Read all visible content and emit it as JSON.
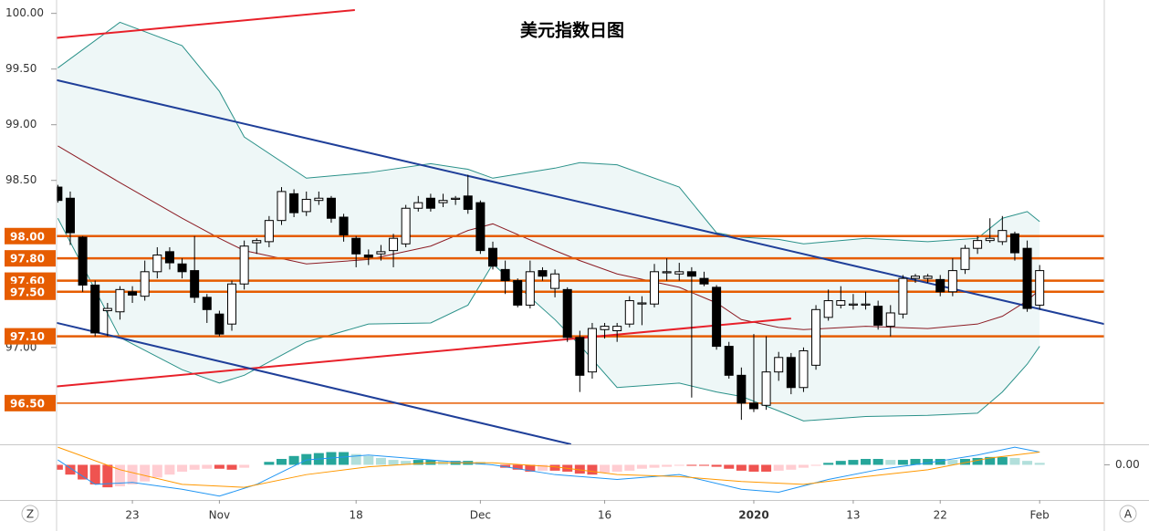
{
  "chart_data": [
    {
      "type": "candlestick",
      "title": "美元指数日图",
      "categories": [
        null,
        null,
        null,
        null,
        null,
        null,
        "23",
        null,
        null,
        null,
        null,
        null,
        null,
        "Nov",
        null,
        null,
        null,
        null,
        null,
        null,
        null,
        null,
        null,
        null,
        "18",
        null,
        null,
        null,
        null,
        null,
        null,
        null,
        null,
        null,
        "Dec",
        null,
        null,
        null,
        null,
        null,
        null,
        null,
        null,
        null,
        "16",
        null,
        null,
        null,
        null,
        null,
        null,
        null,
        null,
        null,
        null,
        null,
        "2020",
        null,
        null,
        null,
        null,
        null,
        null,
        null,
        "13",
        null,
        null,
        null,
        null,
        null,
        null,
        "22",
        null,
        null,
        null,
        null,
        null,
        null,
        null,
        "Feb"
      ],
      "open": [
        98.44,
        98.34,
        97.99,
        97.56,
        97.33,
        97.32,
        97.5,
        97.46,
        97.68,
        97.86,
        97.75,
        97.69,
        97.45,
        97.3,
        97.21,
        97.57,
        97.94,
        97.95,
        98.14,
        98.38,
        98.22,
        98.32,
        98.34,
        98.17,
        97.98,
        97.83,
        97.84,
        97.87,
        97.93,
        98.25,
        98.34,
        98.3,
        98.33,
        98.36,
        98.3,
        97.89,
        97.7,
        97.6,
        97.38,
        97.69,
        97.53,
        97.52,
        97.09,
        96.78,
        97.16,
        97.15,
        97.21,
        97.39,
        97.39,
        97.67,
        97.66,
        97.68,
        97.62,
        97.54,
        97.01,
        96.75,
        96.5,
        96.48,
        96.78,
        96.91,
        96.64,
        96.84,
        97.27,
        97.38,
        97.38,
        97.38,
        97.37,
        97.19,
        97.3,
        97.62,
        97.62,
        97.61,
        97.5,
        97.7,
        97.89,
        97.96,
        97.95,
        98.02,
        97.89,
        97.38
      ],
      "high": [
        98.46,
        98.4,
        98.0,
        97.6,
        97.4,
        97.55,
        97.55,
        97.78,
        97.9,
        97.9,
        97.8,
        98.0,
        97.48,
        97.33,
        97.6,
        97.96,
        97.98,
        98.18,
        98.44,
        98.42,
        98.4,
        98.4,
        98.36,
        98.2,
        98.0,
        97.88,
        97.92,
        98.02,
        98.28,
        98.36,
        98.38,
        98.38,
        98.36,
        98.55,
        98.32,
        97.95,
        97.78,
        97.62,
        97.78,
        97.72,
        97.7,
        97.54,
        97.15,
        97.22,
        97.22,
        97.22,
        97.46,
        97.46,
        97.75,
        97.8,
        97.76,
        97.72,
        97.68,
        97.56,
        97.05,
        96.82,
        97.12,
        97.1,
        96.96,
        96.95,
        97.0,
        97.38,
        97.52,
        97.55,
        97.48,
        97.5,
        97.42,
        97.38,
        97.65,
        97.66,
        97.66,
        97.65,
        97.8,
        97.92,
        98.0,
        98.16,
        98.18,
        98.04,
        97.96,
        97.74
      ],
      "low": [
        98.3,
        97.92,
        97.5,
        97.1,
        97.1,
        97.25,
        97.4,
        97.42,
        97.62,
        97.7,
        97.62,
        97.4,
        97.22,
        97.1,
        97.15,
        97.52,
        97.84,
        97.9,
        98.1,
        98.17,
        98.18,
        98.28,
        98.12,
        97.95,
        97.72,
        97.74,
        97.78,
        97.72,
        97.9,
        98.22,
        98.22,
        98.26,
        98.28,
        98.2,
        97.84,
        97.7,
        97.48,
        97.36,
        97.35,
        97.6,
        97.45,
        97.05,
        96.6,
        96.72,
        97.08,
        97.05,
        97.18,
        97.2,
        97.36,
        97.6,
        97.6,
        96.55,
        97.55,
        96.98,
        96.72,
        96.35,
        96.42,
        96.44,
        96.7,
        96.58,
        96.6,
        96.8,
        97.24,
        97.35,
        97.34,
        97.34,
        97.16,
        97.1,
        97.26,
        97.58,
        97.58,
        97.46,
        97.46,
        97.66,
        97.84,
        97.94,
        97.92,
        97.78,
        97.32,
        97.34
      ],
      "close": [
        98.32,
        98.03,
        97.56,
        97.13,
        97.35,
        97.52,
        97.47,
        97.68,
        97.83,
        97.76,
        97.68,
        97.45,
        97.34,
        97.12,
        97.57,
        97.91,
        97.96,
        98.14,
        98.4,
        98.21,
        98.33,
        98.34,
        98.16,
        98.01,
        97.84,
        97.81,
        97.86,
        97.98,
        98.25,
        98.3,
        98.25,
        98.32,
        98.34,
        98.24,
        97.87,
        97.73,
        97.6,
        97.38,
        97.68,
        97.64,
        97.66,
        97.09,
        96.75,
        97.17,
        97.19,
        97.19,
        97.42,
        97.4,
        97.68,
        97.68,
        97.68,
        97.64,
        97.57,
        97.01,
        96.75,
        96.5,
        96.45,
        96.78,
        96.91,
        96.64,
        96.97,
        97.34,
        97.42,
        97.42,
        97.39,
        97.39,
        97.2,
        97.31,
        97.62,
        97.64,
        97.64,
        97.5,
        97.69,
        97.89,
        97.96,
        97.98,
        98.05,
        97.85,
        97.35,
        97.69
      ],
      "up_color": "#ffffff",
      "down_color": "#000000",
      "xlim": [
        -0.1,
        84.2
      ],
      "ylim": [
        96.13,
        100.12
      ],
      "yticks": [
        {
          "value": 97,
          "label": "97.00"
        },
        {
          "value": 98.5,
          "label": "98.50"
        },
        {
          "value": 99,
          "label": "99.00"
        },
        {
          "value": 99.5,
          "label": "99.50"
        },
        {
          "value": 100,
          "label": "100.00"
        }
      ],
      "levels": [
        {
          "value": 98,
          "label": "98.00"
        },
        {
          "value": 97.8,
          "label": "97.80"
        },
        {
          "value": 97.6,
          "label": "97.60"
        },
        {
          "value": 97.5,
          "label": "97.50"
        },
        {
          "value": 97.1,
          "label": "97.10"
        },
        {
          "value": 96.5,
          "label": "96.50"
        }
      ],
      "level_color": "#e65c00",
      "trend_lines": [
        {
          "color": "#e8212a",
          "x": [
            -0.07,
            23.9
          ],
          "values": [
            99.78,
            100.03
          ]
        },
        {
          "color": "#e8212a",
          "x": [
            -0.07,
            59.0
          ],
          "values": [
            96.65,
            97.26
          ]
        },
        {
          "color": "#1f3f99",
          "x": [
            -0.07,
            84.2
          ],
          "values": [
            99.4,
            97.21
          ]
        },
        {
          "color": "#1f3f99",
          "x": [
            -0.07,
            41.3
          ],
          "values": [
            97.22,
            96.13
          ]
        }
      ],
      "bands": {
        "color": "#2a9189",
        "middle_color": "#8c1c24",
        "fill": "#eef7f7",
        "x": [
          0,
          5,
          10,
          13,
          15,
          20,
          25,
          30,
          33,
          35,
          40,
          42,
          45,
          50,
          53,
          55,
          58,
          60,
          65,
          70,
          74,
          76,
          78,
          79
        ],
        "upper": [
          99.51,
          99.92,
          99.71,
          99.3,
          98.89,
          98.52,
          98.57,
          98.65,
          98.6,
          98.52,
          98.61,
          98.66,
          98.64,
          98.44,
          98.03,
          97.99,
          97.97,
          97.93,
          97.98,
          97.95,
          97.98,
          98.16,
          98.22,
          98.13
        ],
        "middle": [
          98.81,
          98.48,
          98.16,
          97.98,
          97.87,
          97.75,
          97.79,
          97.91,
          98.05,
          98.11,
          97.87,
          97.78,
          97.66,
          97.54,
          97.4,
          97.25,
          97.18,
          97.16,
          97.19,
          97.17,
          97.21,
          97.28,
          97.42,
          97.52
        ],
        "lower": [
          98.16,
          97.09,
          96.8,
          96.68,
          96.75,
          97.05,
          97.21,
          97.22,
          97.38,
          97.75,
          97.25,
          97.02,
          96.64,
          96.68,
          96.6,
          96.56,
          96.43,
          96.34,
          96.38,
          96.39,
          96.41,
          96.6,
          96.85,
          97.01
        ]
      }
    },
    {
      "type": "macd",
      "histogram": [
        -0.05,
        -0.1,
        -0.15,
        -0.2,
        -0.23,
        -0.22,
        -0.2,
        -0.17,
        -0.13,
        -0.1,
        -0.07,
        -0.05,
        -0.04,
        -0.04,
        -0.05,
        -0.03,
        0.0,
        0.03,
        0.06,
        0.09,
        0.11,
        0.12,
        0.13,
        0.13,
        0.11,
        0.09,
        0.07,
        0.05,
        0.04,
        0.05,
        0.05,
        0.04,
        0.04,
        0.04,
        0.03,
        0.0,
        -0.03,
        -0.05,
        -0.07,
        -0.06,
        -0.06,
        -0.07,
        -0.09,
        -0.1,
        -0.08,
        -0.07,
        -0.06,
        -0.04,
        -0.03,
        -0.02,
        -0.01,
        -0.01,
        -0.01,
        -0.02,
        -0.04,
        -0.06,
        -0.07,
        -0.07,
        -0.06,
        -0.05,
        -0.03,
        -0.01,
        0.02,
        0.04,
        0.05,
        0.06,
        0.06,
        0.05,
        0.05,
        0.06,
        0.06,
        0.06,
        0.05,
        0.06,
        0.07,
        0.08,
        0.08,
        0.07,
        0.04,
        0.02
      ],
      "positive_color": "#26a69a",
      "positive_fading_color": "#b2dfdb",
      "negative_color": "#ef5350",
      "negative_fading_color": "#ffcdd2",
      "ylim": [
        -0.35,
        0.2
      ],
      "yticks": [
        {
          "value": 0,
          "label": "0.00"
        }
      ],
      "lines": [
        {
          "color": "#2196f3",
          "x": [
            0,
            3,
            6,
            10,
            13,
            16,
            20,
            25,
            30,
            35,
            40,
            45,
            50,
            55,
            58,
            62,
            66,
            70,
            74,
            77,
            79
          ],
          "values": [
            0.05,
            -0.2,
            -0.18,
            -0.25,
            -0.32,
            -0.2,
            0.05,
            0.1,
            0.05,
            0.0,
            -0.1,
            -0.15,
            -0.1,
            -0.25,
            -0.28,
            -0.15,
            -0.05,
            0.02,
            0.1,
            0.18,
            0.13
          ]
        },
        {
          "color": "#ff9800",
          "x": [
            0,
            5,
            10,
            15,
            20,
            25,
            30,
            35,
            40,
            45,
            50,
            55,
            60,
            65,
            70,
            75,
            79
          ],
          "values": [
            0.18,
            -0.05,
            -0.2,
            -0.23,
            -0.1,
            -0.02,
            0.02,
            0.02,
            -0.02,
            -0.1,
            -0.12,
            -0.17,
            -0.2,
            -0.12,
            -0.05,
            0.07,
            0.13
          ]
        }
      ]
    }
  ],
  "toolbar": [
    "Z",
    "A"
  ]
}
